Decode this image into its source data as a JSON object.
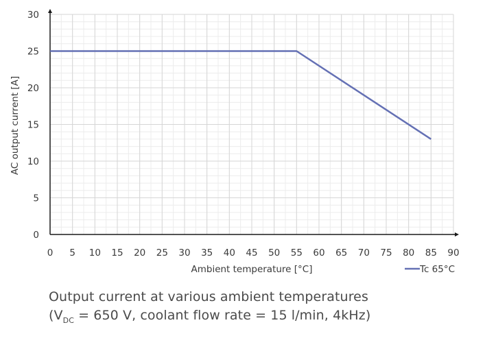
{
  "chart_data": {
    "type": "line",
    "xlabel": "Ambient temperature [°C]",
    "ylabel": "AC output current [A]",
    "xlim": [
      0,
      90
    ],
    "ylim": [
      0,
      30
    ],
    "x_ticks": [
      0,
      5,
      10,
      15,
      20,
      25,
      30,
      35,
      40,
      45,
      50,
      55,
      60,
      65,
      70,
      75,
      80,
      85,
      90
    ],
    "y_ticks": [
      0,
      5,
      10,
      15,
      20,
      25,
      30
    ],
    "grid": true,
    "legend_position": "bottom-right",
    "series": [
      {
        "name": "Tc 65°C",
        "color": "#6470b4",
        "x": [
          0,
          55,
          85
        ],
        "y": [
          25,
          25,
          13
        ]
      }
    ]
  },
  "caption": {
    "line1": "Output current at various ambient temperatures",
    "line2_prefix": "(V",
    "line2_sub": "DC",
    "line2_suffix": " = 650 V, coolant flow rate = 15 l/min, 4kHz)"
  }
}
